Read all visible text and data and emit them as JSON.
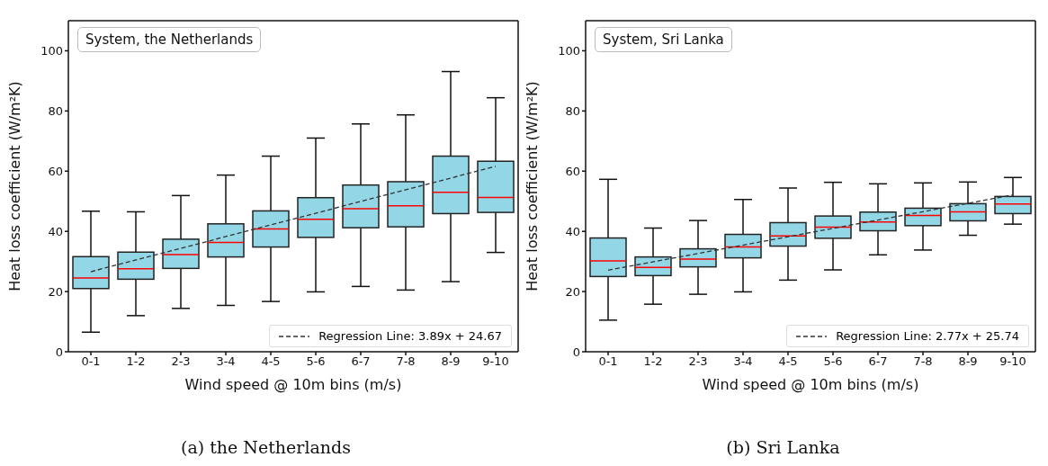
{
  "chart_data": [
    {
      "type": "box",
      "title": "System, the Netherlands",
      "xlabel": "Wind speed @ 10m bins (m/s)",
      "ylabel": "Heat loss coefficient (W/m²K)",
      "categories": [
        "0-1",
        "1-2",
        "2-3",
        "3-4",
        "4-5",
        "5-6",
        "6-7",
        "7-8",
        "8-9",
        "9-10"
      ],
      "ylim": [
        0,
        110
      ],
      "yticks": [
        0,
        20,
        40,
        60,
        80,
        100
      ],
      "legend": "bottom right",
      "annotations": [
        "(a) the Netherlands"
      ],
      "series": [
        {
          "color": "#93d7e6",
          "boxes": [
            {
              "low": 6.5,
              "q1": 21.0,
              "median": 24.5,
              "q3": 31.6,
              "high": 46.7
            },
            {
              "low": 12.0,
              "q1": 24.1,
              "median": 27.6,
              "q3": 33.1,
              "high": 46.5
            },
            {
              "low": 14.4,
              "q1": 27.7,
              "median": 32.3,
              "q3": 37.4,
              "high": 51.9
            },
            {
              "low": 15.4,
              "q1": 31.5,
              "median": 36.3,
              "q3": 42.5,
              "high": 58.7
            },
            {
              "low": 16.7,
              "q1": 34.8,
              "median": 40.8,
              "q3": 46.8,
              "high": 65.0
            },
            {
              "low": 19.9,
              "q1": 38.0,
              "median": 44.0,
              "q3": 51.2,
              "high": 71.0
            },
            {
              "low": 21.7,
              "q1": 41.2,
              "median": 47.5,
              "q3": 55.4,
              "high": 75.7
            },
            {
              "low": 20.5,
              "q1": 41.5,
              "median": 48.5,
              "q3": 56.5,
              "high": 78.7
            },
            {
              "low": 23.3,
              "q1": 45.9,
              "median": 53.0,
              "q3": 65.0,
              "high": 93.1
            },
            {
              "low": 33.0,
              "q1": 46.3,
              "median": 51.3,
              "q3": 63.3,
              "high": 84.4
            }
          ]
        },
        {
          "type": "line",
          "name": "Regression Line: 3.89x + 24.67",
          "color": "#333333",
          "line_style": "dashed",
          "x": [
            "0-1",
            "9-10"
          ],
          "values": [
            26.6,
            61.6
          ]
        }
      ]
    },
    {
      "type": "box",
      "title": "System, Sri Lanka",
      "xlabel": "Wind speed @ 10m bins (m/s)",
      "ylabel": "Heat loss coefficient (W/m²K)",
      "categories": [
        "0-1",
        "1-2",
        "2-3",
        "3-4",
        "4-5",
        "5-6",
        "6-7",
        "7-8",
        "8-9",
        "9-10"
      ],
      "ylim": [
        0,
        110
      ],
      "yticks": [
        0,
        20,
        40,
        60,
        80,
        100
      ],
      "legend": "bottom right",
      "annotations": [
        "(b) Sri Lanka"
      ],
      "series": [
        {
          "color": "#93d7e6",
          "boxes": [
            {
              "low": 10.5,
              "q1": 25.0,
              "median": 30.2,
              "q3": 37.8,
              "high": 57.3
            },
            {
              "low": 15.8,
              "q1": 25.3,
              "median": 28.0,
              "q3": 31.5,
              "high": 41.1
            },
            {
              "low": 19.1,
              "q1": 28.2,
              "median": 30.8,
              "q3": 34.2,
              "high": 43.6
            },
            {
              "low": 19.9,
              "q1": 31.2,
              "median": 34.8,
              "q3": 39.0,
              "high": 50.6
            },
            {
              "low": 23.8,
              "q1": 35.1,
              "median": 38.5,
              "q3": 42.9,
              "high": 54.4
            },
            {
              "low": 27.2,
              "q1": 37.7,
              "median": 41.4,
              "q3": 45.1,
              "high": 56.3
            },
            {
              "low": 32.2,
              "q1": 40.2,
              "median": 43.1,
              "q3": 46.4,
              "high": 55.8
            },
            {
              "low": 33.8,
              "q1": 41.9,
              "median": 45.3,
              "q3": 47.7,
              "high": 56.1
            },
            {
              "low": 38.7,
              "q1": 43.5,
              "median": 46.5,
              "q3": 49.2,
              "high": 56.4
            },
            {
              "low": 42.4,
              "q1": 45.9,
              "median": 49.1,
              "q3": 51.6,
              "high": 57.9
            }
          ]
        },
        {
          "type": "line",
          "name": "Regression Line: 2.77x + 25.74",
          "color": "#333333",
          "line_style": "dashed",
          "x": [
            "0-1",
            "9-10"
          ],
          "values": [
            27.1,
            52.1
          ]
        }
      ]
    }
  ]
}
